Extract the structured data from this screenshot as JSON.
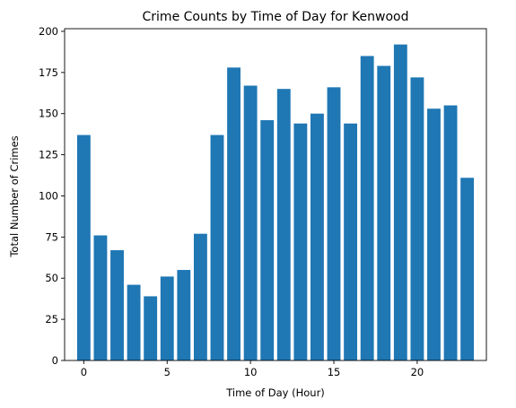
{
  "chart_data": {
    "type": "bar",
    "title": "Crime Counts by Time of Day for Kenwood",
    "xlabel": "Time of Day (Hour)",
    "ylabel": "Total Number of Crimes",
    "x": [
      0,
      1,
      2,
      3,
      4,
      5,
      6,
      7,
      8,
      9,
      10,
      11,
      12,
      13,
      14,
      15,
      16,
      17,
      18,
      19,
      20,
      21,
      22,
      23
    ],
    "values": [
      137,
      76,
      67,
      46,
      39,
      51,
      55,
      77,
      137,
      178,
      167,
      146,
      165,
      144,
      150,
      166,
      144,
      185,
      179,
      192,
      172,
      153,
      155,
      111
    ],
    "xlim": [
      -1.15,
      24.15
    ],
    "ylim": [
      0,
      201.6
    ],
    "xticks": [
      0,
      5,
      10,
      15,
      20
    ],
    "yticks": [
      0,
      25,
      50,
      75,
      100,
      125,
      150,
      175,
      200
    ],
    "bar_width": 0.8,
    "bar_color": "#1f77b4",
    "grid": false,
    "legend": "none"
  }
}
